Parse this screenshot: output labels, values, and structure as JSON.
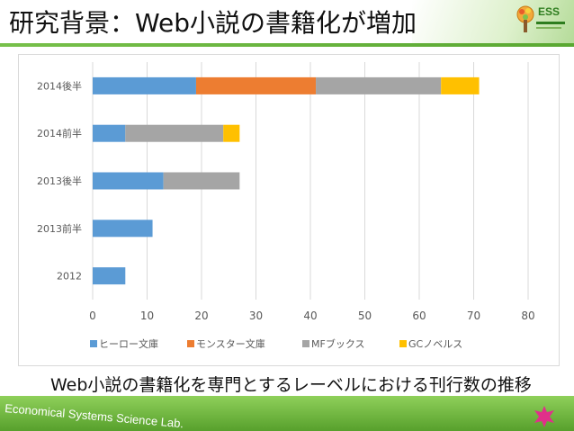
{
  "slide": {
    "title": "研究背景：Web小説の書籍化が増加",
    "caption": "Web小説の書籍化を専門とするレーベルにおける刊行数の推移",
    "footer": "Economical Systems Science Lab.",
    "logo_text": "ESS",
    "logo_icon": "tree-logo-icon",
    "footer_icon": "pink-star-icon"
  },
  "chart_data": {
    "type": "bar",
    "orientation": "horizontal",
    "stacked": true,
    "categories": [
      "2014後半",
      "2014前半",
      "2013後半",
      "2013前半",
      "2012"
    ],
    "series": [
      {
        "name": "ヒーロー文庫",
        "color": "#5b9bd5",
        "values": [
          19,
          6,
          13,
          11,
          6
        ]
      },
      {
        "name": "モンスター文庫",
        "color": "#ed7d31",
        "values": [
          22,
          0,
          0,
          0,
          0
        ]
      },
      {
        "name": "MFブックス",
        "color": "#a5a5a5",
        "values": [
          23,
          18,
          14,
          0,
          0
        ]
      },
      {
        "name": "GCノベルス",
        "color": "#ffc000",
        "values": [
          7,
          3,
          0,
          0,
          0
        ]
      }
    ],
    "xlim": [
      0,
      80
    ],
    "xticks": [
      "0",
      "10",
      "20",
      "30",
      "40",
      "50",
      "60",
      "70",
      "80"
    ],
    "grid": true,
    "legend_position": "bottom"
  }
}
